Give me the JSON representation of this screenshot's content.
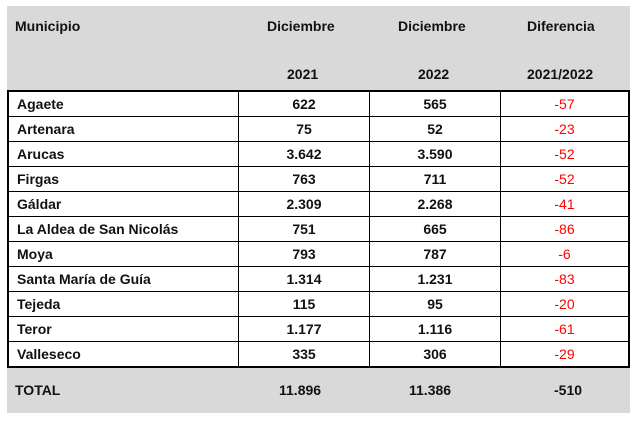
{
  "header": {
    "municipio": "Municipio",
    "col1_line1": "Diciembre",
    "col1_line2": "2021",
    "col2_line1": "Diciembre",
    "col2_line2": "2022",
    "col3_line1": "Diferencia",
    "col3_line2": "2021/2022"
  },
  "rows": [
    {
      "municipio": "Agaete",
      "y2021": "622",
      "y2022": "565",
      "diff": "-57"
    },
    {
      "municipio": "Artenara",
      "y2021": "75",
      "y2022": "52",
      "diff": "-23"
    },
    {
      "municipio": "Arucas",
      "y2021": "3.642",
      "y2022": "3.590",
      "diff": "-52"
    },
    {
      "municipio": "Firgas",
      "y2021": "763",
      "y2022": "711",
      "diff": "-52"
    },
    {
      "municipio": "Gáldar",
      "y2021": "2.309",
      "y2022": "2.268",
      "diff": "-41"
    },
    {
      "municipio": "La Aldea de San Nicolás",
      "y2021": "751",
      "y2022": "665",
      "diff": "-86"
    },
    {
      "municipio": "Moya",
      "y2021": "793",
      "y2022": "787",
      "diff": "-6"
    },
    {
      "municipio": "Santa María de Guía",
      "y2021": "1.314",
      "y2022": "1.231",
      "diff": "-83"
    },
    {
      "municipio": "Tejeda",
      "y2021": "115",
      "y2022": "95",
      "diff": "-20"
    },
    {
      "municipio": "Teror",
      "y2021": "1.177",
      "y2022": "1.116",
      "diff": "-61"
    },
    {
      "municipio": "Valleseco",
      "y2021": "335",
      "y2022": "306",
      "diff": "-29"
    }
  ],
  "total": {
    "label": "TOTAL",
    "y2021": "11.896",
    "y2022": "11.386",
    "diff": "-510"
  },
  "colors": {
    "header_bg": "#d9d9d9",
    "negative": "#ff0000"
  }
}
